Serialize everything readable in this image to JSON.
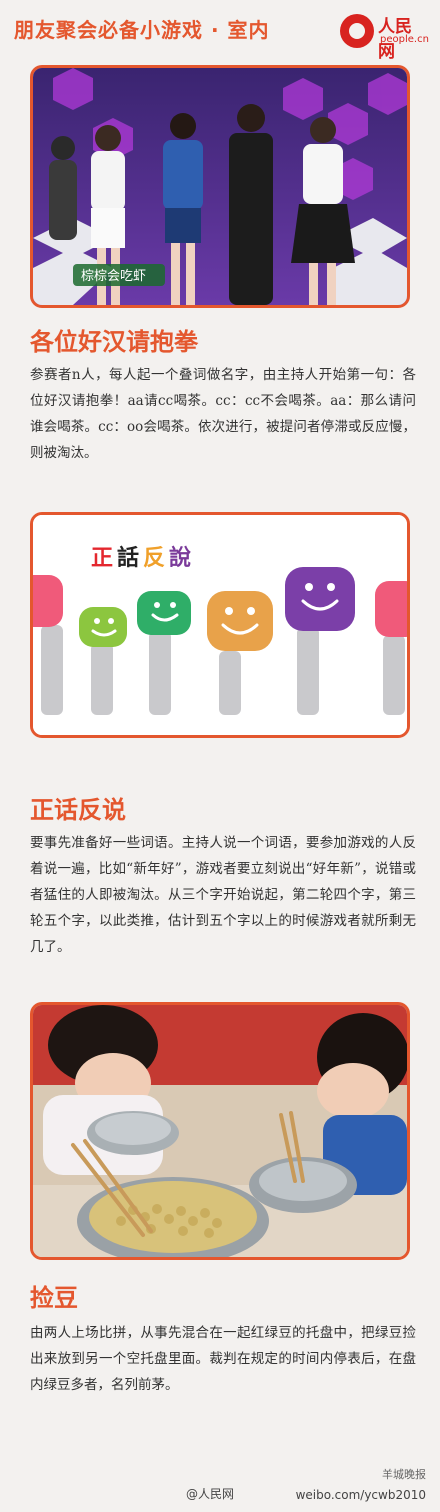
{
  "header": {
    "title": "朋友聚会必备小游戏 · 室内",
    "logo_cn": "人民网",
    "logo_en": "people.cn"
  },
  "games": [
    {
      "title": "各位好汉请抱拳",
      "body": "参赛者n人，每人起一个叠词做名字，由主持人开始第一句：各位好汉请抱拳！aa请cc喝茶。cc：cc不会喝茶。aa：那么请问谁会喝茶。cc：oo会喝茶。依次进行，被提问者停滞或反应慢，则被淘汰。",
      "image_caption": "棕棕会吃虾"
    },
    {
      "title": "正话反说",
      "body": "要事先准备好一些词语。主持人说一个词语，要参加游戏的人反着说一遍，比如“新年好”，游戏者要立刻说出“好年新”，说错或者猛住的人即被淘汰。从三个字开始说起，第二轮四个字，第三轮五个字，以此类推，估计到五个字以上的时候游戏者就所剩无几了。",
      "image_text": [
        "正",
        "話",
        "反",
        "說"
      ]
    },
    {
      "title": "捡豆",
      "body": "由两人上场比拼，从事先混合在一起红绿豆的托盘中，把绿豆捡出来放到另一个空托盘里面。裁判在规定的时间内停表后，在盘内绿豆多者，名列前茅。"
    }
  ],
  "footer": {
    "left": "@人民网",
    "right": "weibo.com/ycwb2010",
    "weibo_mark": "羊城晚报"
  },
  "colors": {
    "accent": "#e4572e",
    "brand": "#d8231f"
  }
}
